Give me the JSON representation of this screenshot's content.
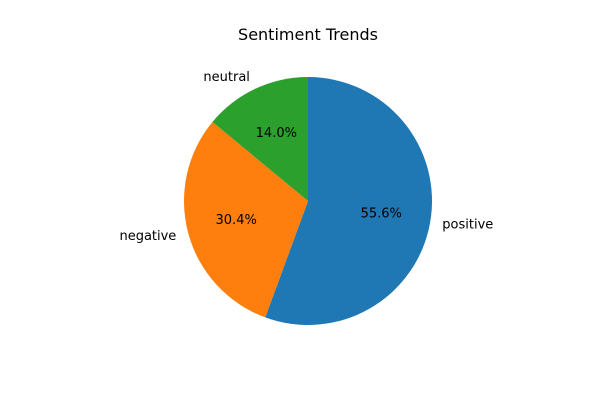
{
  "chart_data": {
    "type": "pie",
    "title": "Sentiment Trends",
    "slices": [
      {
        "label": "positive",
        "value": 55.6,
        "pct_text": "55.6%",
        "color": "#1f77b4"
      },
      {
        "label": "negative",
        "value": 30.4,
        "pct_text": "30.4%",
        "color": "#ff7f0e"
      },
      {
        "label": "neutral",
        "value": 14.0,
        "pct_text": "14.0%",
        "color": "#2ca02c"
      }
    ],
    "start_angle_deg": 90,
    "direction": "clockwise"
  }
}
